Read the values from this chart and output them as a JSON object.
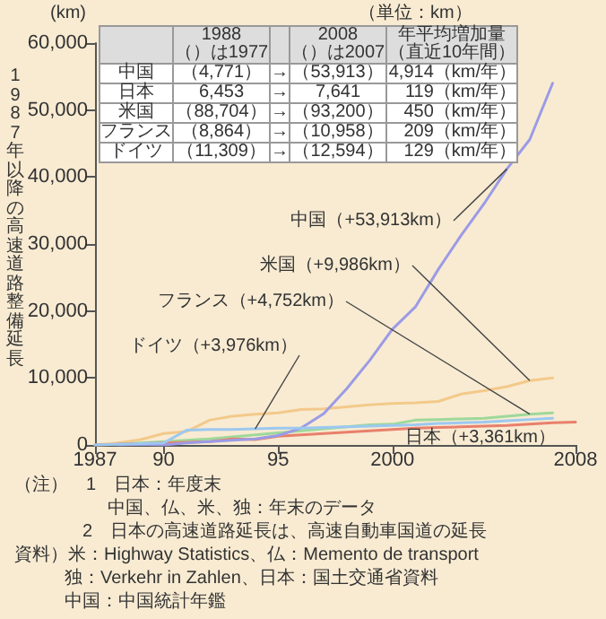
{
  "chart_data": [
    {
      "type": "line",
      "ylabel": "1987年以降の高速道路整備延長",
      "xlim": [
        1987,
        2008
      ],
      "ylim": [
        0,
        60000
      ],
      "xticks": [
        {
          "value": 1987,
          "label": "1987"
        },
        {
          "value": 1990,
          "label": "90"
        },
        {
          "value": 1995,
          "label": "95"
        },
        2000,
        2008
      ],
      "yticks": [
        0,
        {
          "value": 10000,
          "label": "10,000"
        },
        {
          "value": 20000,
          "label": "20,000"
        },
        {
          "value": 30000,
          "label": "30,000"
        },
        {
          "value": 40000,
          "label": "40,000"
        },
        {
          "value": 50000,
          "label": "50,000"
        },
        {
          "value": 60000,
          "label": "60,000"
        }
      ],
      "series": [
        {
          "color": "#f3c98a",
          "x": [
            1987,
            1988,
            1989,
            1990,
            1991,
            1992,
            1993,
            1994,
            1995,
            1996,
            1997,
            1998,
            1999,
            2000,
            2001,
            2002,
            2003,
            2004,
            2005,
            2006,
            2007
          ],
          "values": [
            0,
            300,
            800,
            1700,
            2000,
            3700,
            4300,
            4600,
            4800,
            5300,
            5400,
            5700,
            6000,
            6200,
            6300,
            6500,
            7600,
            8100,
            8700,
            9600,
            10000
          ]
        },
        {
          "color": "#9fd89a",
          "x": [
            1987,
            1988,
            1989,
            1990,
            1991,
            1992,
            1993,
            1994,
            1995,
            1996,
            1997,
            1998,
            1999,
            2000,
            2001,
            2002,
            2003,
            2004,
            2005,
            2006,
            2007
          ],
          "values": [
            0,
            100,
            300,
            500,
            700,
            900,
            1200,
            1500,
            1800,
            2100,
            2400,
            2700,
            3000,
            3100,
            3700,
            3800,
            3900,
            4000,
            4300,
            4600,
            4800
          ]
        },
        {
          "color": "#e8806c",
          "x": [
            1987,
            1988,
            1989,
            1990,
            1991,
            1992,
            1993,
            1994,
            1995,
            1996,
            1997,
            1998,
            1999,
            2000,
            2001,
            2002,
            2003,
            2004,
            2005,
            2006,
            2007,
            2008
          ],
          "values": [
            0,
            100,
            200,
            300,
            400,
            500,
            900,
            800,
            1300,
            1500,
            1700,
            1900,
            2100,
            2300,
            2500,
            2600,
            2700,
            2800,
            2900,
            3100,
            3300,
            3400
          ]
        },
        {
          "color": "#9b9be6",
          "x": [
            1988,
            1989,
            1990,
            1991,
            1992,
            1993,
            1994,
            1995,
            1996,
            1997,
            1998,
            1999,
            2000,
            2001,
            2002,
            2003,
            2004,
            2005,
            2006,
            2007
          ],
          "values": [
            0,
            100,
            0,
            300,
            500,
            700,
            900,
            1400,
            2500,
            4700,
            8400,
            12600,
            17300,
            20600,
            26200,
            31300,
            36000,
            41200,
            45600,
            54000
          ]
        },
        {
          "color": "#9cc8f0",
          "x": [
            1987,
            1988,
            1989,
            1990,
            1991,
            1992,
            1993,
            1994,
            1995,
            1996,
            1997,
            1998,
            1999,
            2000,
            2001,
            2002,
            2003,
            2004,
            2005,
            2006,
            2007
          ],
          "values": [
            0,
            100,
            200,
            300,
            2200,
            2300,
            2300,
            2400,
            2500,
            2500,
            2600,
            2700,
            2800,
            2900,
            3000,
            3200,
            3300,
            3400,
            3600,
            3800,
            4000
          ]
        }
      ],
      "annotations": [
        "(km)",
        "日本（+3,361km）",
        {
          "text": "中国（+53,913km）",
          "x": 2005,
          "y": 41200
        },
        {
          "text": "米国（+9,986km）",
          "x": 2006,
          "y": 9600
        },
        {
          "text": "フランス（+4,752km）",
          "x": 2006,
          "y": 4600
        },
        {
          "text": "ドイツ（+3,976km）",
          "x": 1994,
          "y": 2400
        },
        "（注）　1　日本：年度末",
        "中国、仏、米、独：年末のデータ",
        "2　日本の高速道路延長は、高速自動車国道の延長",
        "資料）米：Highway Statistics、仏：Memento de transport",
        "独：Verkehr in Zahlen、日本：国土交通省資料",
        "中国：中国統計年鑑"
      ]
    },
    {
      "type": "other",
      "annotations": [
        "（単位：km）",
        "1988（）は1977",
        "2008（）は2007",
        "年平均増加量（直近10年間）",
        "中国",
        "（4,771）",
        "→",
        "（53,913）",
        "4,914（km/年）",
        "日本",
        "6,453",
        "→",
        "7,641",
        "119（km/年）",
        "米国",
        "（88,704）",
        "→",
        "（93,200）",
        "450（km/年）",
        "フランス",
        "（8,864）",
        "→",
        "（10,958）",
        "209（km/年）",
        "ドイツ",
        "（11,309）",
        "→",
        "（12,594）",
        "129（km/年）"
      ]
    }
  ]
}
